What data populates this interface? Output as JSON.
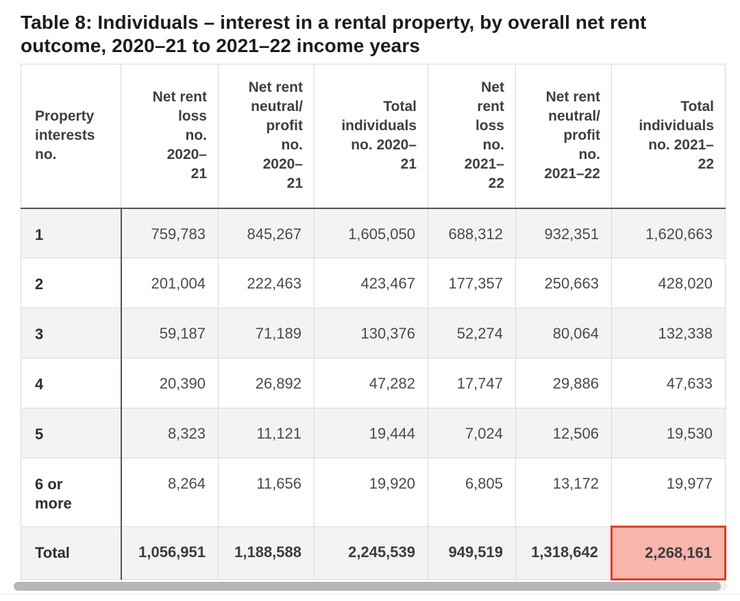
{
  "page": {
    "title": "Table 8: Individuals – interest in a rental property, by overall net rent outcome, 2020–21 to 2021–22 income years"
  },
  "table": {
    "headers": [
      "Property\ninterests\nno.",
      "Net rent\nloss\nno.\n2020–\n21",
      "Net rent\nneutral/\nprofit\nno.\n2020–\n21",
      "Total\nindividuals\nno. 2020–\n21",
      "Net\nrent\nloss\nno.\n2021–\n22",
      "Net rent\nneutral/\nprofit\nno.\n2021–22",
      "Total\nindividuals\nno. 2021–\n22"
    ],
    "rows": [
      {
        "label": "1",
        "values": [
          "759,783",
          "845,267",
          "1,605,050",
          "688,312",
          "932,351",
          "1,620,663"
        ]
      },
      {
        "label": "2",
        "values": [
          "201,004",
          "222,463",
          "423,467",
          "177,357",
          "250,663",
          "428,020"
        ]
      },
      {
        "label": "3",
        "values": [
          "59,187",
          "71,189",
          "130,376",
          "52,274",
          "80,064",
          "132,338"
        ]
      },
      {
        "label": "4",
        "values": [
          "20,390",
          "26,892",
          "47,282",
          "17,747",
          "29,886",
          "47,633"
        ]
      },
      {
        "label": "5",
        "values": [
          "8,323",
          "11,121",
          "19,444",
          "7,024",
          "12,506",
          "19,530"
        ]
      },
      {
        "label": "6 or\nmore",
        "values": [
          "8,264",
          "11,656",
          "19,920",
          "6,805",
          "13,172",
          "19,977"
        ]
      },
      {
        "label": "Total",
        "values": [
          "1,056,951",
          "1,188,588",
          "2,245,539",
          "949,519",
          "1,318,642",
          "2,268,161"
        ]
      }
    ],
    "highlight": {
      "row": "Total",
      "column": "Total individuals no. 2021–22",
      "value": "2,268,161",
      "border_color": "#e23a26",
      "background_color": "#f8b5ab"
    }
  },
  "colors": {
    "stripe_row": "#f3f3f4",
    "dark_border": "#545456",
    "light_border": "#dadada",
    "title_text": "#1c1c1e",
    "body_text": "#4a4a4c",
    "scrollbar_thumb": "#b7b7b7"
  }
}
